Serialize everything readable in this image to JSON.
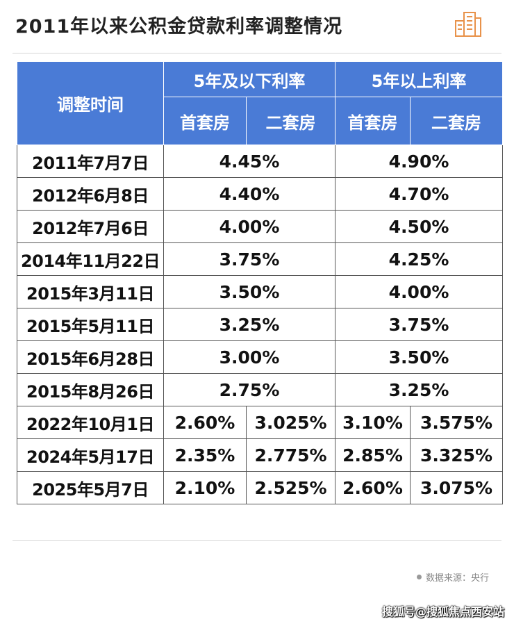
{
  "title": "2011年以来公积金贷款利率调整情况",
  "table": {
    "header_date": "调整时间",
    "header_group_1": "5年及以下利率",
    "header_group_2": "5年以上利率",
    "sub_first": "首套房",
    "sub_second": "二套房",
    "merged_rows": [
      {
        "date": "2011年7月7日",
        "short": "4.45%",
        "long": "4.90%"
      },
      {
        "date": "2012年6月8日",
        "short": "4.40%",
        "long": "4.70%"
      },
      {
        "date": "2012年7月6日",
        "short": "4.00%",
        "long": "4.50%"
      },
      {
        "date": "2014年11月22日",
        "short": "3.75%",
        "long": "4.25%"
      },
      {
        "date": "2015年3月11日",
        "short": "3.50%",
        "long": "4.00%"
      },
      {
        "date": "2015年5月11日",
        "short": "3.25%",
        "long": "3.75%"
      },
      {
        "date": "2015年6月28日",
        "short": "3.00%",
        "long": "3.50%"
      },
      {
        "date": "2015年8月26日",
        "short": "2.75%",
        "long": "3.25%"
      }
    ],
    "split_rows": [
      {
        "date": "2022年10月1日",
        "short_first": "2.60%",
        "short_second": "3.025%",
        "long_first": "3.10%",
        "long_second": "3.575%"
      },
      {
        "date": "2024年5月17日",
        "short_first": "2.35%",
        "short_second": "2.775%",
        "long_first": "2.85%",
        "long_second": "3.325%"
      },
      {
        "date": "2025年5月7日",
        "short_first": "2.10%",
        "short_second": "2.525%",
        "long_first": "2.60%",
        "long_second": "3.075%"
      }
    ]
  },
  "source": "数据来源：央行",
  "watermark": "搜狐号@搜狐焦点西安站",
  "colors": {
    "header_bg": "#4a7bd6",
    "logo": "#e8924a"
  }
}
